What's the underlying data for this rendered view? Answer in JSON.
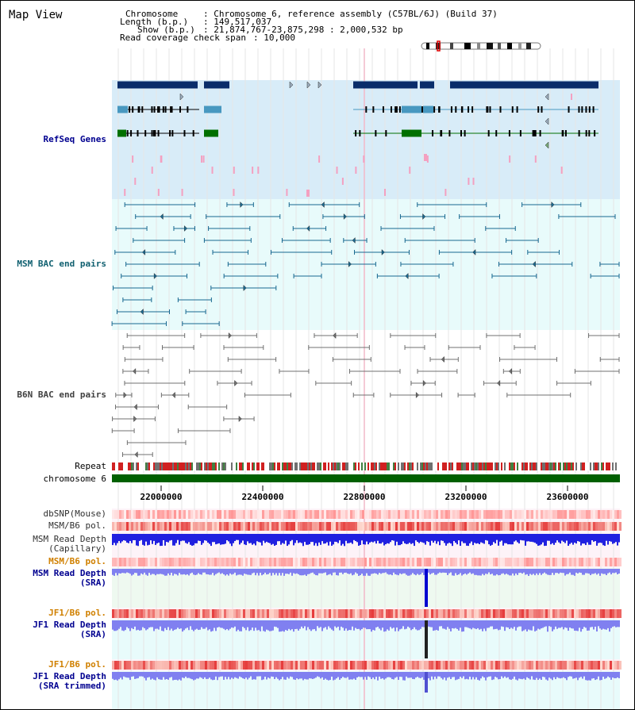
{
  "header": {
    "title": "Map View",
    "chromosome_key": "Chromosome",
    "chromosome_value": ": Chromosome 6, reference assembly (C57BL/6J) (Build 37)",
    "length_key": "Length (b.p.)",
    "length_value": ": 149,517,037",
    "show_key": "Show (b.p.)",
    "show_value": ": 21,874,767-23,875,298 : 2,000,532 bp",
    "span_key": "Read coverage check span",
    "span_value": ": 10,000"
  },
  "tracks": {
    "refseq": "RefSeq Genes",
    "msm_bac": "MSM BAC end pairs",
    "b6n_bac": "B6N BAC end pairs",
    "repeat": "Repeat",
    "chromosome": "chromosome 6",
    "dbsnp": "dbSNP(Mouse)",
    "msm_b6_pol": "MSM/B6 pol.",
    "msm_depth_cap_1": "MSM Read Depth",
    "msm_depth_cap_2": "(Capillary)",
    "msm_b6_pol_2": "MSM/B6 pol.",
    "msm_depth_sra_1": "MSM Read Depth",
    "msm_depth_sra_2": "(SRA)",
    "jf1_b6_pol": "JF1/B6 pol.",
    "jf1_depth_sra_1": "JF1 Read Depth",
    "jf1_depth_sra_2": "(SRA)",
    "jf1_b6_pol_2": "JF1/B6 pol.",
    "jf1_depth_trim_1": "JF1 Read Depth",
    "jf1_depth_trim_2": "(SRA trimmed)"
  },
  "ruler": {
    "ticks": [
      "22000000",
      "22400000",
      "22800000",
      "23200000",
      "23600000"
    ]
  },
  "colors": {
    "refseq_bg": "#d8ecf8",
    "bac_bg": "#e8fbfb",
    "b6n_bg": "#ffffff",
    "depth_bg": "#eef9f0",
    "gene_dark": "#0a2d6a",
    "gene_mid": "#4898c0",
    "gene_green": "#007000",
    "msm_bac": "#186890",
    "b6n_bac": "#707070",
    "label_blue": "#000090",
    "label_teal": "#106070",
    "label_orange": "#d08000",
    "chromosome_green": "#006000",
    "depth_blue": "#2020e0",
    "depth_light": "#8080f0"
  }
}
